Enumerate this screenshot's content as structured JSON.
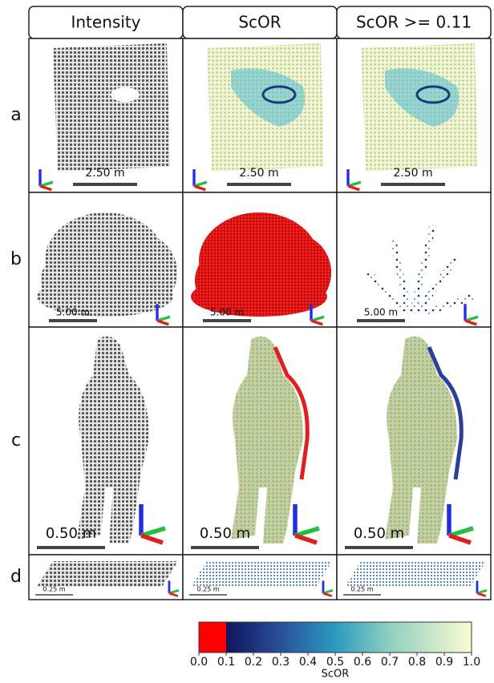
{
  "columns": [
    "Intensity",
    "ScOR",
    "ScOR >= 0.11"
  ],
  "rows": [
    {
      "label": "a",
      "scale_bar": "2.50 m"
    },
    {
      "label": "b",
      "scale_bar": "5.00 m"
    },
    {
      "label": "c",
      "scale_bar": "0.50 m"
    },
    {
      "label": "d",
      "scale_bar": "0.25 m"
    }
  ],
  "colorbar": {
    "title": "ScOR",
    "range": [
      0,
      1
    ],
    "ticks": [
      {
        "value": 0,
        "label": "0.0"
      },
      {
        "value": 0.1,
        "label": "0.1"
      },
      {
        "value": 0.2,
        "label": "0.2"
      },
      {
        "value": 0.3,
        "label": "0.3"
      },
      {
        "value": 0.4,
        "label": "0.4"
      },
      {
        "value": 0.5,
        "label": "0.5"
      },
      {
        "value": 0.6,
        "label": "0.6"
      },
      {
        "value": 0.7,
        "label": "0.7"
      },
      {
        "value": 0.8,
        "label": "0.8"
      },
      {
        "value": 0.9,
        "label": "0.9"
      },
      {
        "value": 1,
        "label": "1.0"
      }
    ]
  }
}
